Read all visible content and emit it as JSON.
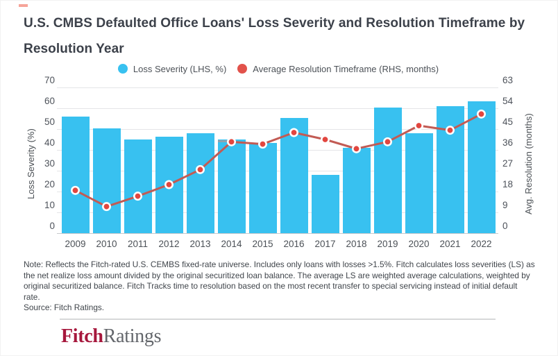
{
  "header": {
    "title_lines": [
      "U.S. CMBS Defaulted Office Loans' Loss Severity and Resolution Timeframe by",
      "Resolution Year"
    ]
  },
  "legend": {
    "items": [
      {
        "label": "Loss Severity (LHS, %)",
        "color": "#38c1f0"
      },
      {
        "label": "Average Resolution Timeframe (RHS, months)",
        "color": "#e2524b"
      }
    ]
  },
  "chart_data": {
    "type": "bar+line",
    "title": "U.S. CMBS Defaulted Office Loans' Loss Severity and Resolution Timeframe by Resolution Year",
    "categories": [
      "2009",
      "2010",
      "2011",
      "2012",
      "2013",
      "2014",
      "2015",
      "2016",
      "2017",
      "2018",
      "2019",
      "2020",
      "2021",
      "2022"
    ],
    "series": [
      {
        "name": "Loss Severity (LHS, %)",
        "type": "bar",
        "axis": "left",
        "unit": "%",
        "color": "#38c1f0",
        "values": [
          56,
          50.5,
          45,
          46.5,
          48,
          45,
          43.5,
          55.5,
          28,
          41,
          60.5,
          48,
          61,
          63.5
        ]
      },
      {
        "name": "Average Resolution Timeframe (RHS, months)",
        "type": "line",
        "axis": "right",
        "unit": "months",
        "color": "#c25b54",
        "marker_color": "#e2463f",
        "values": [
          18.5,
          11.5,
          16,
          21,
          27.5,
          39.5,
          38.5,
          43.5,
          40.5,
          36.5,
          39.5,
          46.5,
          44.5,
          51.5
        ]
      }
    ],
    "left_axis": {
      "label": "Loss Severity (%)",
      "ticks": [
        70,
        60,
        50,
        40,
        30,
        20,
        10,
        0
      ],
      "range": [
        0,
        70
      ]
    },
    "right_axis": {
      "label": "Avg. Resolution (months)",
      "ticks": [
        63,
        54,
        45,
        36,
        27,
        18,
        9,
        0
      ],
      "range": [
        0,
        63
      ]
    },
    "grid": "horizontal",
    "legend_position": "top-center",
    "annotations": [
      {
        "category": "2014",
        "type": "gray_segment_at_bar_top",
        "color": "#8fa3ae"
      }
    ]
  },
  "footer": {
    "note_lines": [
      "Note: Reflects the Fitch-rated U.S. CEMBS fixed-rate universe. Includes only loans with losses >1.5%. Fitch calculates loss severities (LS) as",
      "the net realize loss amount divided by the original securitized loan balance. The average LS are weighted average calculations, weighted by",
      "original securitized balance. Fitch Tracks time to resolution based on the most recent transfer to special servicing instead of initial default",
      "rate.",
      "Source: Fitch Ratings."
    ]
  },
  "logo": {
    "part1": "Fitch",
    "part2": "Ratings",
    "part1_color": "#a6173c",
    "part2_color": "#63666b"
  }
}
